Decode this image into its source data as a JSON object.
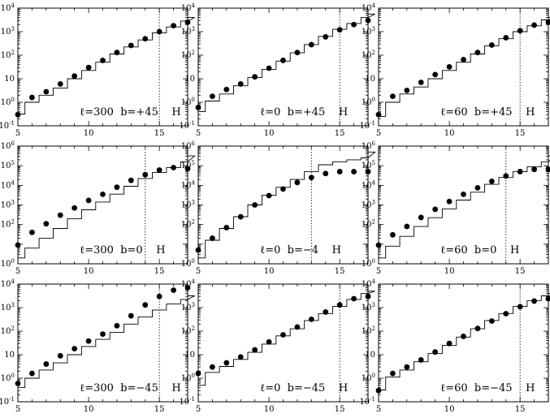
{
  "chart_data": [
    {
      "type": "scatter",
      "label": "ℓ=300  b=+45    H",
      "xlim": [
        5,
        17
      ],
      "ylim_log10": [
        -1,
        4
      ],
      "x_ticks": [
        "5",
        "10",
        "15"
      ],
      "y_ticks": [
        {
          "base": "10",
          "exp": "-1"
        },
        {
          "base": "10",
          "exp": "0"
        },
        {
          "base": "10",
          "exp": ""
        },
        {
          "base": "10",
          "exp": "2"
        },
        {
          "base": "10",
          "exp": "3"
        },
        {
          "base": "10",
          "exp": "4"
        }
      ],
      "vline_x": 15,
      "points": [
        [
          5,
          0.3
        ],
        [
          6,
          1.6
        ],
        [
          7,
          2.8
        ],
        [
          8,
          6
        ],
        [
          9,
          13
        ],
        [
          10,
          30
        ],
        [
          11,
          60
        ],
        [
          12,
          130
        ],
        [
          13,
          260
        ],
        [
          14,
          500
        ],
        [
          15,
          1000
        ],
        [
          16,
          1800
        ],
        [
          17,
          2500
        ]
      ],
      "steps_log10": [
        -0.5,
        0.0,
        0.3,
        0.6,
        1.0,
        1.35,
        1.7,
        2.05,
        2.35,
        2.65,
        2.95,
        3.2,
        3.45,
        3.6
      ]
    },
    {
      "type": "scatter",
      "label": "ℓ=0  b=+45    H",
      "xlim": [
        5,
        17
      ],
      "ylim_log10": [
        -1,
        4
      ],
      "x_ticks": [
        "5",
        "10",
        "15"
      ],
      "y_ticks": [
        {
          "base": "10",
          "exp": "-1"
        },
        {
          "base": "10",
          "exp": "0"
        },
        {
          "base": "10",
          "exp": ""
        },
        {
          "base": "10",
          "exp": "2"
        },
        {
          "base": "10",
          "exp": "3"
        },
        {
          "base": "10",
          "exp": "4"
        }
      ],
      "vline_x": 15,
      "points": [
        [
          5,
          0.6
        ],
        [
          6,
          1.8
        ],
        [
          7,
          3.5
        ],
        [
          8,
          6
        ],
        [
          9,
          12
        ],
        [
          10,
          28
        ],
        [
          11,
          60
        ],
        [
          12,
          130
        ],
        [
          13,
          280
        ],
        [
          14,
          600
        ],
        [
          15,
          1200
        ],
        [
          16,
          2000
        ],
        [
          17,
          3000
        ]
      ],
      "steps_log10": [
        -0.4,
        0.05,
        0.35,
        0.7,
        1.05,
        1.4,
        1.75,
        2.1,
        2.45,
        2.8,
        3.1,
        3.35,
        3.6,
        3.75
      ]
    },
    {
      "type": "scatter",
      "label": "ℓ=60  b=+45    H",
      "xlim": [
        5,
        17
      ],
      "ylim_log10": [
        -1,
        4
      ],
      "x_ticks": [
        "5",
        "10",
        "15"
      ],
      "y_ticks": [
        {
          "base": "10",
          "exp": "-1"
        },
        {
          "base": "10",
          "exp": "0"
        },
        {
          "base": "10",
          "exp": ""
        },
        {
          "base": "10",
          "exp": "2"
        },
        {
          "base": "10",
          "exp": "3"
        },
        {
          "base": "10",
          "exp": "4"
        }
      ],
      "vline_x": 15,
      "points": [
        [
          5,
          0.3
        ],
        [
          6,
          1.8
        ],
        [
          7,
          3.2
        ],
        [
          8,
          7
        ],
        [
          9,
          15
        ],
        [
          10,
          32
        ],
        [
          11,
          65
        ],
        [
          12,
          130
        ],
        [
          13,
          270
        ],
        [
          14,
          550
        ],
        [
          15,
          1100
        ],
        [
          16,
          1900
        ],
        [
          17,
          2500
        ]
      ],
      "steps_log10": [
        -0.6,
        0.0,
        0.35,
        0.65,
        1.0,
        1.35,
        1.7,
        2.05,
        2.4,
        2.7,
        3.0,
        3.25,
        3.5,
        3.6
      ]
    },
    {
      "type": "scatter",
      "label": "ℓ=300  b=0    H",
      "xlim": [
        5,
        17
      ],
      "ylim_log10": [
        0,
        6
      ],
      "x_ticks": [
        "5",
        "10",
        "15"
      ],
      "y_ticks": [
        {
          "base": "10",
          "exp": "0"
        },
        {
          "base": "10",
          "exp": "2"
        },
        {
          "base": "10",
          "exp": "3"
        },
        {
          "base": "10",
          "exp": "4"
        },
        {
          "base": "10",
          "exp": "5"
        },
        {
          "base": "10",
          "exp": "6"
        }
      ],
      "y_tick_values": [
        0,
        2,
        3,
        4,
        5,
        6
      ],
      "vline_x": 14,
      "points": [
        [
          5,
          9
        ],
        [
          6,
          40
        ],
        [
          7,
          110
        ],
        [
          8,
          300
        ],
        [
          9,
          700
        ],
        [
          10,
          1700
        ],
        [
          11,
          3500
        ],
        [
          12,
          8000
        ],
        [
          13,
          18000
        ],
        [
          14,
          35000
        ],
        [
          15,
          60000
        ],
        [
          16,
          80000
        ],
        [
          17,
          70000
        ]
      ],
      "steps_log10": [
        0.3,
        0.8,
        1.3,
        1.8,
        2.3,
        2.75,
        3.15,
        3.55,
        3.95,
        4.35,
        4.65,
        4.9,
        5.2,
        5.5
      ]
    },
    {
      "type": "scatter",
      "label": "ℓ=0  b=−4    H",
      "xlim": [
        5,
        17
      ],
      "ylim_log10": [
        0,
        6
      ],
      "x_ticks": [
        "5",
        "10",
        "15"
      ],
      "y_ticks": [
        {
          "base": "10",
          "exp": "0"
        },
        {
          "base": "10",
          "exp": "2"
        },
        {
          "base": "10",
          "exp": "3"
        },
        {
          "base": "10",
          "exp": "4"
        },
        {
          "base": "10",
          "exp": "5"
        },
        {
          "base": "10",
          "exp": "6"
        }
      ],
      "y_tick_values": [
        0,
        2,
        3,
        4,
        5,
        6
      ],
      "vline_x": 13,
      "points": [
        [
          5,
          5
        ],
        [
          6,
          20
        ],
        [
          7,
          70
        ],
        [
          8,
          250
        ],
        [
          9,
          1000
        ],
        [
          10,
          3000
        ],
        [
          11,
          6500
        ],
        [
          12,
          14000
        ],
        [
          13,
          25000
        ],
        [
          14,
          40000
        ],
        [
          15,
          50000
        ],
        [
          16,
          50000
        ],
        [
          17,
          50000
        ]
      ],
      "steps_log10": [
        0.3,
        1.2,
        1.8,
        2.4,
        3.0,
        3.5,
        3.9,
        4.3,
        4.7,
        5.05,
        5.2,
        5.3,
        5.4,
        5.7
      ]
    },
    {
      "type": "scatter",
      "label": "ℓ=60  b=0    H",
      "xlim": [
        5,
        17
      ],
      "ylim_log10": [
        0,
        6
      ],
      "x_ticks": [
        "5",
        "10",
        "15"
      ],
      "y_ticks": [
        {
          "base": "10",
          "exp": "0"
        },
        {
          "base": "10",
          "exp": "2"
        },
        {
          "base": "10",
          "exp": "3"
        },
        {
          "base": "10",
          "exp": "4"
        },
        {
          "base": "10",
          "exp": "5"
        },
        {
          "base": "10",
          "exp": "6"
        }
      ],
      "y_tick_values": [
        0,
        2,
        3,
        4,
        5,
        6
      ],
      "vline_x": 14,
      "points": [
        [
          5,
          9
        ],
        [
          6,
          30
        ],
        [
          7,
          80
        ],
        [
          8,
          230
        ],
        [
          9,
          600
        ],
        [
          10,
          1500
        ],
        [
          11,
          3500
        ],
        [
          12,
          7500
        ],
        [
          13,
          16000
        ],
        [
          14,
          30000
        ],
        [
          15,
          50000
        ],
        [
          16,
          65000
        ],
        [
          17,
          65000
        ]
      ],
      "steps_log10": [
        0.3,
        0.9,
        1.4,
        1.9,
        2.35,
        2.8,
        3.25,
        3.65,
        4.05,
        4.4,
        4.7,
        4.95,
        5.2,
        5.5
      ]
    },
    {
      "type": "scatter",
      "label": "ℓ=300  b=−45    H",
      "xlim": [
        5,
        17
      ],
      "ylim_log10": [
        -1,
        4
      ],
      "x_ticks": [
        "5",
        "10",
        "15"
      ],
      "y_ticks": [
        {
          "base": "10",
          "exp": "-1"
        },
        {
          "base": "10",
          "exp": "0"
        },
        {
          "base": "10",
          "exp": ""
        },
        {
          "base": "10",
          "exp": "2"
        },
        {
          "base": "10",
          "exp": "3"
        },
        {
          "base": "10",
          "exp": "4"
        }
      ],
      "vline_x": 15,
      "points": [
        [
          5,
          0.6
        ],
        [
          6,
          1.6
        ],
        [
          7,
          4
        ],
        [
          8,
          9
        ],
        [
          9,
          18
        ],
        [
          10,
          38
        ],
        [
          11,
          75
        ],
        [
          12,
          170
        ],
        [
          13,
          450
        ],
        [
          14,
          1300
        ],
        [
          15,
          3000
        ],
        [
          16,
          5500
        ],
        [
          17,
          7000
        ]
      ],
      "steps_log10": [
        -0.4,
        0.0,
        0.35,
        0.65,
        1.0,
        1.35,
        1.65,
        1.95,
        2.3,
        2.6,
        2.9,
        3.15,
        3.35,
        3.5
      ]
    },
    {
      "type": "scatter",
      "label": "ℓ=0  b=−45    H",
      "xlim": [
        5,
        17
      ],
      "ylim_log10": [
        -1,
        4
      ],
      "x_ticks": [
        "5",
        "10",
        "15"
      ],
      "y_ticks": [
        {
          "base": "10",
          "exp": "-1"
        },
        {
          "base": "10",
          "exp": "0"
        },
        {
          "base": "10",
          "exp": ""
        },
        {
          "base": "10",
          "exp": "2"
        },
        {
          "base": "10",
          "exp": "3"
        },
        {
          "base": "10",
          "exp": "4"
        }
      ],
      "vline_x": 15,
      "points": [
        [
          5,
          1.6
        ],
        [
          6,
          3
        ],
        [
          7,
          4.5
        ],
        [
          8,
          8
        ],
        [
          9,
          16
        ],
        [
          10,
          35
        ],
        [
          11,
          70
        ],
        [
          12,
          150
        ],
        [
          13,
          320
        ],
        [
          14,
          650
        ],
        [
          15,
          1300
        ],
        [
          16,
          2400
        ],
        [
          17,
          3000
        ]
      ],
      "steps_log10": [
        -0.3,
        0.25,
        0.5,
        0.8,
        1.1,
        1.45,
        1.8,
        2.1,
        2.45,
        2.75,
        3.05,
        3.35,
        3.6,
        3.7
      ]
    },
    {
      "type": "scatter",
      "label": "ℓ=60  b=−45    H",
      "xlim": [
        5,
        17
      ],
      "ylim_log10": [
        -1,
        4
      ],
      "x_ticks": [
        "5",
        "10",
        "15"
      ],
      "y_ticks": [
        {
          "base": "10",
          "exp": "-1"
        },
        {
          "base": "10",
          "exp": "0"
        },
        {
          "base": "10",
          "exp": ""
        },
        {
          "base": "10",
          "exp": "2"
        },
        {
          "base": "10",
          "exp": "3"
        },
        {
          "base": "10",
          "exp": "4"
        }
      ],
      "vline_x": 15,
      "points": [
        [
          5,
          0.3
        ],
        [
          6,
          1.6
        ],
        [
          7,
          3
        ],
        [
          8,
          6
        ],
        [
          9,
          13
        ],
        [
          10,
          30
        ],
        [
          11,
          60
        ],
        [
          12,
          130
        ],
        [
          13,
          270
        ],
        [
          14,
          550
        ],
        [
          15,
          1100
        ],
        [
          16,
          1900
        ],
        [
          17,
          2400
        ]
      ],
      "steps_log10": [
        -0.5,
        0.05,
        0.35,
        0.7,
        1.05,
        1.4,
        1.75,
        2.1,
        2.45,
        2.75,
        3.05,
        3.3,
        3.5,
        3.6
      ]
    }
  ]
}
